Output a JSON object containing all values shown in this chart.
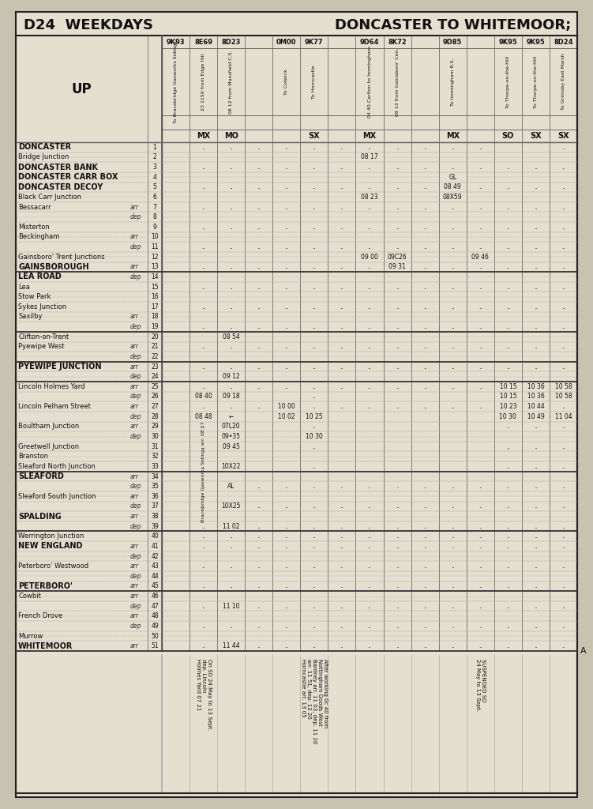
{
  "title_left": "D24  WEEKDAYS",
  "title_right": "DONCASTER TO WHITEMOOR;",
  "bg_color": "#e5dfd0",
  "page_bg": "#c8c2b0",
  "border_color": "#222222",
  "train_headers": [
    "9K93",
    "8E69",
    "8D23",
    "",
    "0M00",
    "9K77",
    "",
    "9D64",
    "8K72",
    "",
    "9D85",
    "",
    "9K95",
    "9K95",
    "8D24"
  ],
  "col_descriptions": [
    "To Bracebridge Gasworks Sidings",
    "23 11SX from Edge Hill",
    "08 12 from Mansfield C.S.",
    "",
    "To Colwick",
    "To Horncastle",
    "",
    "04 40 Carlton to Immingham",
    "09 13 from Gainsboro' Cen.",
    "",
    "To Immingham R.S.",
    "",
    "To Thorpe-on-the-Hill",
    "To Thorpe-on-the-Hill",
    "To Grimsby East Marsh"
  ],
  "day_codes": [
    "",
    "MX",
    "MO",
    "",
    "",
    "SX",
    "",
    "MX",
    "",
    "",
    "MX",
    "",
    "SO",
    "SX",
    "SX"
  ],
  "up_label": "UP",
  "rows": [
    {
      "name": "DONCASTER",
      "suffix": ".. .. ..",
      "bold": true,
      "num": "1",
      "dotted": false,
      "times": [
        "",
        "..",
        "..",
        "..",
        "..",
        "..",
        "..",
        "..",
        "..",
        "..",
        "..",
        "..",
        "",
        "",
        ".."
      ]
    },
    {
      "name": "Bridge Junction",
      "suffix": "..........",
      "bold": false,
      "num": "2",
      "dotted": true,
      "times": [
        "",
        "",
        "",
        "",
        "",
        "",
        "",
        "08 17",
        "",
        "",
        "",
        "",
        "",
        "",
        ""
      ]
    },
    {
      "name": "DONCASTER BANK",
      "suffix": "..",
      "bold": true,
      "num": "3",
      "dotted": false,
      "times": [
        "",
        "..",
        "..",
        "..",
        "..",
        "..",
        "..",
        "..",
        "..",
        "..",
        "..",
        "..",
        "..",
        "..",
        ".."
      ]
    },
    {
      "name": "DONCASTER CARR BOX",
      "suffix": "",
      "bold": true,
      "num": "4",
      "dotted": true,
      "times": [
        "",
        "",
        "",
        "",
        "",
        "",
        "",
        "",
        "",
        "",
        "GL",
        "",
        "",
        "",
        ""
      ]
    },
    {
      "name": "DONCASTER DECOY",
      "suffix": "..",
      "bold": true,
      "num": "5",
      "dotted": false,
      "times": [
        "",
        "..",
        "..",
        "..",
        "..",
        "..",
        "..",
        "..",
        "..",
        "..",
        "08 49",
        "..",
        "..",
        "..",
        ".."
      ]
    },
    {
      "name": "Black Carr Junction",
      "suffix": ".......",
      "bold": false,
      "num": "6",
      "dotted": true,
      "times": [
        "",
        "",
        "",
        "",
        "",
        "",
        "",
        "08 23",
        "",
        "",
        "08X59",
        "",
        "",
        "",
        ""
      ]
    },
    {
      "name": "Bessacarr",
      "arr_dep": "arr",
      "bold": false,
      "num": "7",
      "dotted": false,
      "times": [
        "",
        "..",
        "..",
        "..",
        "..",
        "..",
        "..",
        "..",
        "..",
        "..",
        "..",
        "..",
        "..",
        "..",
        ".."
      ]
    },
    {
      "name": "",
      "arr_dep": "dep",
      "bold": false,
      "num": "8",
      "dotted": true,
      "times": [
        "",
        "",
        "",
        "",
        "",
        "",
        "",
        "",
        "",
        "",
        "",
        "",
        "",
        "",
        ""
      ]
    },
    {
      "name": "Misterton",
      "suffix": ".. .. ..",
      "bold": false,
      "num": "9",
      "dotted": false,
      "times": [
        "",
        "..",
        "..",
        "..",
        "..",
        "..",
        "..",
        "..",
        "..",
        "..",
        "..",
        "..",
        "..",
        "..",
        ".."
      ]
    },
    {
      "name": "Beckingham",
      "arr_dep": "arr",
      "bold": false,
      "num": "10",
      "dotted": true,
      "times": [
        "",
        "",
        "",
        "",
        "",
        "",
        "",
        "",
        "",
        "",
        "",
        "",
        "",
        "",
        ""
      ]
    },
    {
      "name": "",
      "arr_dep": "dep",
      "bold": false,
      "num": "11",
      "dotted": false,
      "times": [
        "",
        "..",
        "..",
        "..",
        "..",
        "..",
        "..",
        "..",
        "..",
        "..",
        "..",
        "..",
        "..",
        "..",
        ".."
      ]
    },
    {
      "name": "Gainsboro' Trent Junctions",
      "suffix": "..",
      "bold": false,
      "num": "12",
      "dotted": true,
      "times": [
        "",
        "",
        "",
        "",
        "",
        "",
        "",
        "09 00",
        "09C26",
        "",
        "",
        "09 46",
        "",
        "",
        ""
      ]
    },
    {
      "name": "GAINSBOROUGH",
      "arr_dep": "arr",
      "bold": true,
      "num": "13",
      "dotted": false,
      "times": [
        "",
        "..",
        "..",
        "..",
        "..",
        "..",
        "..",
        "..",
        "09 31",
        "..",
        "..",
        "..",
        "..",
        "..",
        ".."
      ],
      "section_break_after": true
    },
    {
      "name": "LEA ROAD",
      "arr_dep": "dep",
      "bold": true,
      "num": "14",
      "dotted": true,
      "times": [
        "",
        "",
        "",
        "",
        "",
        "",
        "",
        "",
        "",
        "",
        "",
        "",
        "",
        "",
        ""
      ]
    },
    {
      "name": "Lea",
      "suffix": ".. .. .. ..",
      "bold": false,
      "num": "15",
      "dotted": false,
      "times": [
        "",
        "..",
        "..",
        "..",
        "..",
        "..",
        "..",
        "..",
        "..",
        "..",
        "..",
        "..",
        "..",
        "..",
        ".."
      ]
    },
    {
      "name": "Stow Park",
      "suffix": ".......…",
      "bold": false,
      "num": "16",
      "dotted": true,
      "times": [
        "",
        "",
        "",
        "",
        "",
        "",
        "",
        "",
        "",
        "",
        "",
        "",
        "",
        "",
        ""
      ]
    },
    {
      "name": "Sykes Junction",
      "suffix": ".. .. ..",
      "bold": false,
      "num": "17",
      "dotted": false,
      "times": [
        "",
        "..",
        "..",
        "..",
        "..",
        "..",
        "..",
        "..",
        "..",
        "..",
        "..",
        "..",
        "..",
        "..",
        ".."
      ]
    },
    {
      "name": "Saxilby",
      "arr_dep": "arr",
      "bold": false,
      "num": "18",
      "dotted": true,
      "times": [
        "",
        "",
        "",
        "",
        "",
        "",
        "",
        "",
        "",
        "",
        "",
        "",
        "",
        "",
        ""
      ]
    },
    {
      "name": "",
      "arr_dep": "dep",
      "bold": false,
      "num": "19",
      "dotted": false,
      "times": [
        "",
        "..",
        "..",
        "..",
        "..",
        "..",
        "..",
        "..",
        "..",
        "..",
        "..",
        "..",
        "..",
        "..",
        ".."
      ],
      "section_break_after": true
    },
    {
      "name": "Clifton-on-Trent",
      "suffix": ".......",
      "bold": false,
      "num": "20",
      "dotted": true,
      "times": [
        "",
        "",
        "08 54",
        "",
        "",
        "",
        "",
        "",
        "",
        "",
        "",
        "",
        "",
        "",
        ""
      ]
    },
    {
      "name": "Pyewipe West",
      "arr_dep": "arr",
      "suffix": ".. ..",
      "bold": false,
      "num": "21",
      "dotted": false,
      "times": [
        "",
        "..",
        "..",
        "..",
        "..",
        "..",
        "..",
        "..",
        "..",
        "..",
        "..",
        "..",
        "..",
        "..",
        ".."
      ]
    },
    {
      "name": "",
      "arr_dep": "dep",
      "bold": false,
      "num": "22",
      "dotted": true,
      "times": [
        "",
        "",
        "",
        "",
        "",
        "",
        "",
        "",
        "",
        "",
        "",
        "",
        "",
        "",
        ""
      ],
      "section_break_after": true
    },
    {
      "name": "PYEWIPE JUNCTION",
      "arr_dep": "arr",
      "bold": true,
      "num": "23",
      "dotted": false,
      "times": [
        "",
        "..",
        "..",
        "..",
        "..",
        "..",
        "..",
        "..",
        "..",
        "..",
        "..",
        "..",
        "..",
        "..",
        ".."
      ]
    },
    {
      "name": "",
      "arr_dep": "dep",
      "bold": false,
      "num": "24",
      "dotted": true,
      "times": [
        "",
        "",
        "09 12",
        "",
        "",
        "",
        "",
        "",
        "",
        "",
        "",
        "",
        "",
        "",
        ""
      ],
      "section_break_after": true
    },
    {
      "name": "Lincoln Holmes Yard",
      "arr_dep": "arr",
      "bold": false,
      "num": "25",
      "dotted": false,
      "times": [
        "",
        "..",
        "..",
        "..",
        "..",
        "..",
        "..",
        "..",
        "..",
        "..",
        "..",
        "..",
        "10 15",
        "10 36",
        "10 58"
      ]
    },
    {
      "name": "",
      "arr_dep": "dep",
      "bold": false,
      "num": "26",
      "dotted": false,
      "times": [
        "",
        "08 40",
        "09 18",
        "",
        "",
        "..",
        "",
        "",
        "",
        "",
        "",
        "",
        "10 15",
        "10 36",
        "10 58"
      ]
    },
    {
      "name": "Lincoln Pelham Street",
      "arr_dep": "arr",
      "suffix": "",
      "bold": false,
      "num": "27",
      "dotted": false,
      "times": [
        "",
        "..",
        "..",
        "..",
        "10 00",
        "..",
        "..",
        "..",
        "..",
        "..",
        "..",
        "..",
        "10 23",
        "10 44",
        ".."
      ]
    },
    {
      "name": "",
      "arr_dep": "dep",
      "bold": false,
      "num": "28",
      "dotted": false,
      "times": [
        "",
        "08 48",
        "←",
        "",
        "10 02",
        "10 25",
        "",
        "",
        "",
        "",
        "",
        "",
        "10 30",
        "10 49",
        "11 04"
      ]
    },
    {
      "name": "Boultham Junction",
      "arr_dep": "arr",
      "suffix": ".. ..",
      "bold": false,
      "num": "29",
      "dotted": false,
      "times": [
        "",
        "..",
        "07L20",
        "",
        "",
        "..",
        "",
        "",
        "",
        "",
        "",
        "",
        "..",
        "..",
        ".."
      ]
    },
    {
      "name": "",
      "arr_dep": "dep",
      "bold": false,
      "num": "30",
      "dotted": true,
      "times": [
        "",
        "",
        "09•35",
        "",
        "",
        "10 30",
        "",
        "",
        "",
        "",
        "",
        "",
        "",
        "",
        ""
      ]
    },
    {
      "name": "Greetwell Junction",
      "suffix": ".. .. ..",
      "bold": false,
      "num": "31",
      "dotted": false,
      "times": [
        "",
        "..",
        "09 45",
        "",
        "",
        "..",
        "",
        "",
        "",
        "",
        "",
        "",
        "..",
        "..",
        ".."
      ]
    },
    {
      "name": "Branston",
      "suffix": ".........",
      "bold": false,
      "num": "32",
      "dotted": true,
      "times": [
        "",
        "",
        "",
        "",
        "",
        "",
        "",
        "",
        "",
        "",
        "",
        "",
        "",
        "",
        ""
      ]
    },
    {
      "name": "Sleaford North Junction",
      "suffix": ".. ..",
      "bold": false,
      "num": "33",
      "dotted": false,
      "times": [
        "",
        "..",
        "10X22",
        "",
        "",
        "..",
        "",
        "",
        "",
        "",
        "",
        "",
        "..",
        "..",
        ".."
      ],
      "section_break_after": true
    },
    {
      "name": "SLEAFORD",
      "arr_dep": "arr",
      "bold": true,
      "num": "34",
      "dotted": true,
      "times": [
        "",
        "",
        "",
        "",
        "",
        "",
        "",
        "",
        "",
        "",
        "",
        "",
        "",
        "",
        ""
      ]
    },
    {
      "name": "",
      "arr_dep": "dep",
      "bold": false,
      "num": "35",
      "dotted": false,
      "times": [
        "",
        "..",
        "AL",
        "..",
        "..",
        "..",
        "..",
        "..",
        "..",
        "..",
        "..",
        "..",
        "..",
        "..",
        ".."
      ]
    },
    {
      "name": "Sleaford South Junction",
      "arr_dep": "arr",
      "suffix": "..",
      "bold": false,
      "num": "36",
      "dotted": true,
      "times": [
        "",
        "",
        "",
        "",
        "",
        "",
        "",
        "",
        "",
        "",
        "",
        "",
        "",
        "",
        ""
      ]
    },
    {
      "name": "",
      "arr_dep": "dep",
      "bold": false,
      "num": "37",
      "dotted": false,
      "times": [
        "",
        "..",
        "10X25",
        "..",
        "..",
        "..",
        "..",
        "..",
        "..",
        "..",
        "..",
        "..",
        "..",
        "..",
        ".."
      ]
    },
    {
      "name": "SPALDING",
      "arr_dep": "arr",
      "bold": true,
      "num": "38",
      "dotted": true,
      "times": [
        "",
        "",
        "",
        "",
        "",
        "",
        "",
        "",
        "",
        "",
        "",
        "",
        "",
        "",
        ""
      ]
    },
    {
      "name": "",
      "arr_dep": "dep",
      "bold": false,
      "num": "39",
      "dotted": false,
      "times": [
        "",
        "..",
        "11 02",
        "..",
        "..",
        "..",
        "..",
        "..",
        "..",
        "..",
        "..",
        "..",
        "..",
        "..",
        ".."
      ],
      "section_break_after": true
    },
    {
      "name": "Werrington Junction",
      "suffix": "....",
      "bold": false,
      "num": "40",
      "dotted": false,
      "times": [
        "",
        "..",
        "..",
        "..",
        "..",
        "..",
        "..",
        "..",
        "..",
        "..",
        "..",
        "..",
        "..",
        "..",
        ".."
      ]
    },
    {
      "name": "NEW ENGLAND",
      "arr_dep": "arr",
      "bold": true,
      "num": "41",
      "dotted": false,
      "times": [
        "",
        "..",
        "..",
        "..",
        "..",
        "..",
        "..",
        "..",
        "..",
        "..",
        "..",
        "..",
        "..",
        "..",
        ".."
      ]
    },
    {
      "name": "",
      "arr_dep": "dep",
      "bold": false,
      "num": "42",
      "dotted": true,
      "times": [
        "",
        "",
        "",
        "",
        "",
        "",
        "",
        "",
        "",
        "",
        "",
        "",
        "",
        "",
        ""
      ]
    },
    {
      "name": "Peterboro' Westwood",
      "arr_dep": "arr",
      "bold": false,
      "num": "43",
      "dotted": false,
      "times": [
        "",
        "..",
        "..",
        "..",
        "..",
        "..",
        "..",
        "..",
        "..",
        "..",
        "..",
        "..",
        "..",
        "..",
        ".."
      ]
    },
    {
      "name": "",
      "arr_dep": "dep",
      "bold": false,
      "num": "44",
      "dotted": true,
      "times": [
        "",
        "",
        "",
        "",
        "",
        "",
        "",
        "",
        "",
        "",
        "",
        "",
        "",
        "",
        ""
      ]
    },
    {
      "name": "PETERBORO'",
      "arr_dep": "arr",
      "bold": true,
      "num": "45",
      "dotted": false,
      "times": [
        "",
        "..",
        "..",
        "..",
        "..",
        "..",
        "..",
        "..",
        "..",
        "..",
        "..",
        "..",
        "..",
        "..",
        ".."
      ],
      "section_break_after": true
    },
    {
      "name": "Cowbit",
      "arr_dep": "arr",
      "bold": false,
      "num": "46",
      "dotted": true,
      "times": [
        "",
        "",
        "",
        "",
        "",
        "",
        "",
        "",
        "",
        "",
        "",
        "",
        "",
        "",
        ""
      ]
    },
    {
      "name": "",
      "arr_dep": "dep",
      "bold": false,
      "num": "47",
      "dotted": false,
      "times": [
        "",
        "..",
        "11 10",
        "..",
        "..",
        "..",
        "..",
        "..",
        "..",
        "..",
        "..",
        "..",
        "..",
        "..",
        ".."
      ]
    },
    {
      "name": "French Drove",
      "arr_dep": "arr",
      "bold": false,
      "num": "48",
      "dotted": true,
      "times": [
        "",
        "",
        "",
        "",
        "",
        "",
        "",
        "",
        "",
        "",
        "",
        "",
        "",
        "",
        ""
      ]
    },
    {
      "name": "",
      "arr_dep": "dep",
      "bold": false,
      "num": "49",
      "dotted": false,
      "times": [
        "",
        "..",
        "..",
        "..",
        "..",
        "..",
        "..",
        "..",
        "..",
        "..",
        "..",
        "..",
        "..",
        "..",
        ".."
      ]
    },
    {
      "name": "Murrow",
      "suffix": ".......",
      "bold": false,
      "num": "50",
      "dotted": true,
      "times": [
        "",
        "",
        "",
        "",
        "",
        "",
        "",
        "",
        "",
        "",
        "",
        "",
        "",
        "",
        ""
      ]
    },
    {
      "name": "WHITEMOOR",
      "arr_dep": "arr",
      "bold": true,
      "num": "51",
      "dotted": false,
      "times": [
        "",
        "..",
        "11 44",
        "..",
        "..",
        "..",
        "..",
        "..",
        "..",
        "..",
        "..",
        "..",
        "..",
        "..",
        ".."
      ]
    }
  ],
  "footnote_col1_text": "On SO 24 May to 13 Sept.\ndep. Lincoln\nHolmes Yard 07 21",
  "footnote_col1_idx": 1,
  "footnote_col5_text": "After working 0c 40 from\nNottingham Goods West\nBardney arr. 11 03, dep. 11 20\narr. 11 51, dep. 12 20\nHorncastle arr. 13 05",
  "footnote_col5_idx": 5,
  "footnote_col11_text": "SUSPENDED SO\n24 May to 13 Sept.",
  "footnote_col11_idx": 11,
  "bracebridge_text": "Bracebridge Gasworks Sidings arr. 08 57",
  "col_count": 15
}
